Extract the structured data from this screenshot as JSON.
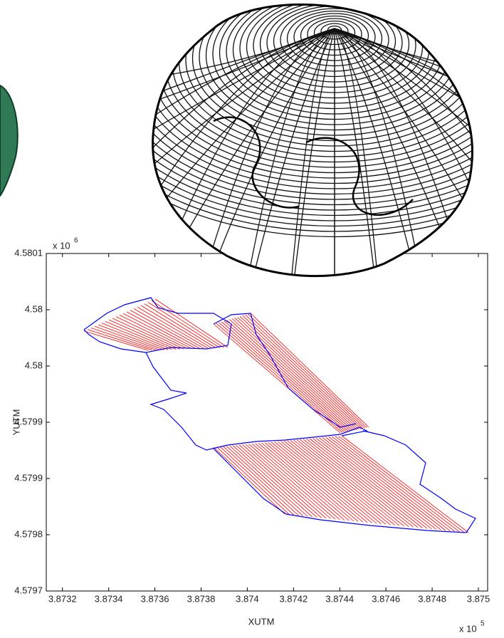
{
  "chart_data": {
    "type": "track-plot",
    "x_label": "XUTM",
    "y_label": "YUTM",
    "x_multiplier": {
      "base": "x 10",
      "exponent": "5"
    },
    "y_multiplier": {
      "base": "x 10",
      "exponent": "6"
    },
    "xlim": [
      3.87313,
      3.87504
    ],
    "xticks": [
      3.8732,
      3.8734,
      3.8736,
      3.8738,
      3.874,
      3.8742,
      3.8744,
      3.8746,
      3.8748,
      3.875
    ],
    "ylim": [
      4.57974,
      4.5801
    ],
    "yticks": [
      {
        "value": 4.57974,
        "label": "4.5797"
      },
      {
        "value": 4.5798,
        "label": "4.5798"
      },
      {
        "value": 4.57986,
        "label": "4.5799"
      },
      {
        "value": 4.57992,
        "label": "4.5799"
      },
      {
        "value": 4.57998,
        "label": "4.58"
      },
      {
        "value": 4.58004,
        "label": "4.58"
      },
      {
        "value": 4.5801,
        "label": "4.5801"
      }
    ],
    "colors": {
      "survey_lines": "#ff0000",
      "track": "#0000ff"
    }
  }
}
